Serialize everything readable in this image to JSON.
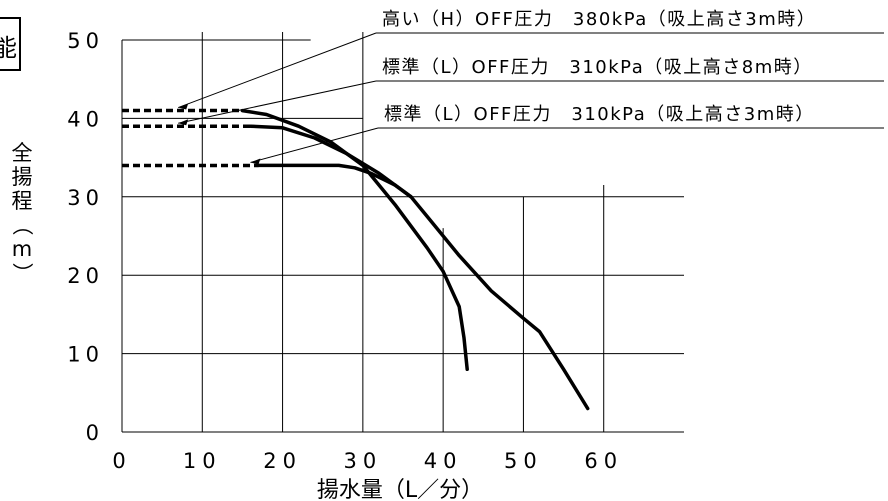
{
  "chart_data": {
    "type": "line",
    "title": "",
    "corner_mark": "能",
    "xlabel": "揚水量（L／分）",
    "ylabel": "全揚程（m）",
    "xlim": [
      0,
      70
    ],
    "ylim": [
      0,
      50
    ],
    "x_ticks": [
      0,
      10,
      20,
      30,
      40,
      50,
      60
    ],
    "y_ticks": [
      0,
      10,
      20,
      30,
      40,
      50
    ],
    "x_tick_labels": [
      "0",
      "10",
      "20",
      "30",
      "40",
      "50",
      "60"
    ],
    "y_tick_labels": [
      "0",
      "10",
      "20",
      "30",
      "40",
      "50"
    ],
    "grid": true,
    "legend": "top-right, leader lines",
    "series": [
      {
        "name": "高い（H）OFF圧力　380kPa（吸上高さ3m時）",
        "shutoff_x": [
          0,
          15
        ],
        "shutoff_y": 41,
        "x": [
          15,
          18,
          22,
          26,
          30,
          34,
          38,
          40,
          42,
          42.6,
          43
        ],
        "y": [
          41,
          40.5,
          39,
          37,
          34,
          29,
          23.5,
          20.5,
          16,
          12,
          8
        ]
      },
      {
        "name": "標準（L）OFF圧力　310kPa（吸上高さ8m時）",
        "shutoff_x": [
          0,
          16
        ],
        "shutoff_y": 39,
        "x": [
          16,
          20,
          24,
          28,
          32,
          36,
          38,
          42,
          46,
          50,
          52,
          55,
          58
        ],
        "y": [
          39,
          38.8,
          37.5,
          35.5,
          33,
          30,
          27.5,
          22.5,
          18,
          14.5,
          12.8,
          8,
          3
        ]
      },
      {
        "name": "標準（L）OFF圧力　310kPa（吸上高さ3m時）",
        "shutoff_x": [
          0,
          17
        ],
        "shutoff_y": 34,
        "x": [
          17,
          24,
          27,
          29,
          31,
          34,
          36
        ],
        "y": [
          34,
          34,
          34,
          33.7,
          33,
          31.5,
          30
        ]
      }
    ]
  },
  "colors": {
    "ink": "#000000",
    "background": "#ffffff"
  }
}
